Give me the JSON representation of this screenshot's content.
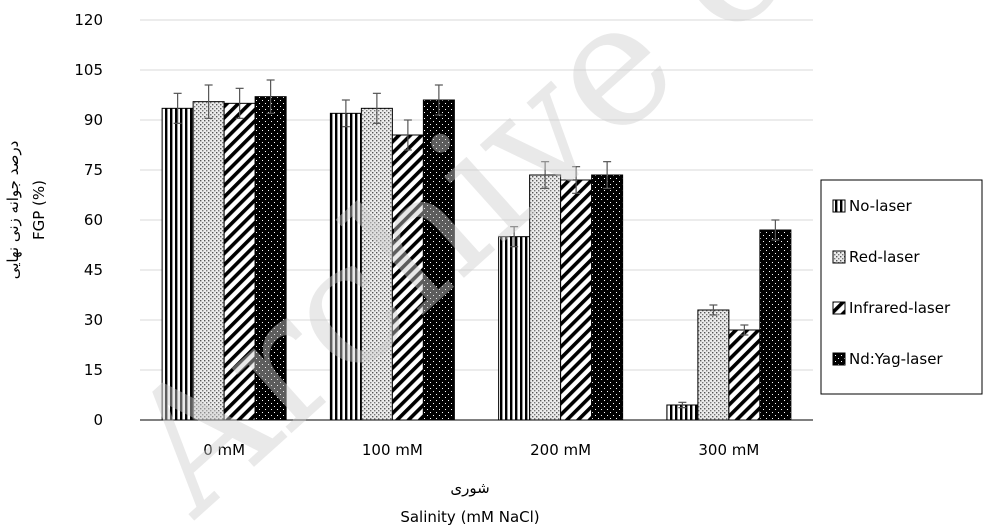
{
  "watermark": "Archive of SID",
  "chart_data": {
    "type": "bar",
    "categories": [
      "0 mM",
      "100 mM",
      "200 mM",
      "300 mM"
    ],
    "series": [
      {
        "name": "No-laser",
        "pattern": "vertical-stripes",
        "values": [
          93.5,
          92.0,
          55.0,
          4.5
        ],
        "errors": [
          4.5,
          4.0,
          3.0,
          0.8
        ]
      },
      {
        "name": "Red-laser",
        "pattern": "dots",
        "values": [
          95.5,
          93.5,
          73.5,
          33.0
        ],
        "errors": [
          5.0,
          4.5,
          4.0,
          1.5
        ]
      },
      {
        "name": "Infrared-laser",
        "pattern": "diagonal-stripes",
        "values": [
          95.0,
          85.5,
          72.0,
          27.0
        ],
        "errors": [
          4.5,
          4.5,
          4.0,
          1.5
        ]
      },
      {
        "name": "Nd:Yag-laser",
        "pattern": "black-dots",
        "values": [
          97.0,
          96.0,
          73.5,
          57.0
        ],
        "errors": [
          5.0,
          4.5,
          4.0,
          3.0
        ]
      }
    ],
    "ylabel_fa": "درصد جوانه زنی نهایی",
    "ylabel_en": "FGP (%)",
    "xlabel_fa": "شوری",
    "xlabel_en": "Salinity (mM NaCl)",
    "ylim": [
      0,
      120
    ],
    "yticks": [
      0,
      15,
      30,
      45,
      60,
      75,
      90,
      105,
      120
    ],
    "grid": true,
    "legend_position": "right"
  }
}
